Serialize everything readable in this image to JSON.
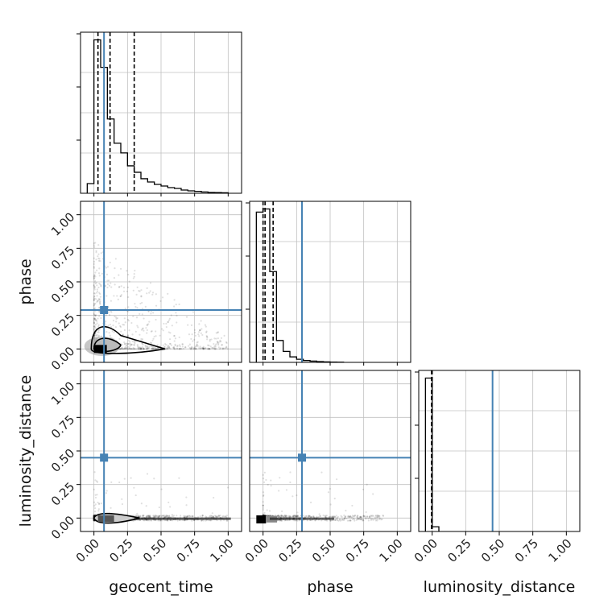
{
  "chart_data": {
    "type": "corner",
    "parameters": [
      "geocent_time",
      "phase",
      "luminosity_distance"
    ],
    "axis_range": [
      -0.1,
      1.1
    ],
    "tick_values": [
      0.0,
      0.25,
      0.5,
      0.75,
      1.0
    ],
    "tick_labels": [
      "0.00",
      "0.25",
      "0.50",
      "0.75",
      "1.00"
    ],
    "grid": true,
    "colors": {
      "truth": "#4682b4",
      "hist": "#000000",
      "grid": "#c0c0c0"
    },
    "truths": {
      "geocent_time": 0.075,
      "phase": 0.29,
      "luminosity_distance": 0.45
    },
    "marginals": [
      {
        "parameter": "geocent_time",
        "bin_edges": [
          -0.05,
          0.0,
          0.05,
          0.1,
          0.15,
          0.2,
          0.25,
          0.3,
          0.35,
          0.4,
          0.45,
          0.5,
          0.55,
          0.6,
          0.65,
          0.7,
          0.75,
          0.8,
          0.85,
          0.9,
          0.95,
          1.0
        ],
        "counts": [
          0.06,
          0.95,
          0.78,
          0.46,
          0.31,
          0.25,
          0.17,
          0.13,
          0.09,
          0.07,
          0.055,
          0.045,
          0.035,
          0.03,
          0.02,
          0.015,
          0.012,
          0.008,
          0.005,
          0.004,
          0.003
        ],
        "quantiles": [
          0.03,
          0.12,
          0.3
        ]
      },
      {
        "parameter": "phase",
        "bin_edges": [
          -0.05,
          0.0,
          0.05,
          0.1,
          0.15,
          0.2,
          0.25,
          0.3,
          0.35,
          0.4,
          0.45,
          0.5,
          0.55,
          0.6
        ],
        "counts": [
          0.96,
          0.98,
          0.58,
          0.14,
          0.07,
          0.035,
          0.02,
          0.012,
          0.008,
          0.005,
          0.003,
          0.002,
          0.001
        ],
        "quantiles": [
          0.0,
          0.015,
          0.075
        ]
      },
      {
        "parameter": "luminosity_distance",
        "bin_edges": [
          -0.05,
          0.0,
          0.05
        ],
        "counts": [
          0.97,
          0.03
        ],
        "quantiles": [
          -0.005,
          0.0
        ]
      }
    ]
  }
}
